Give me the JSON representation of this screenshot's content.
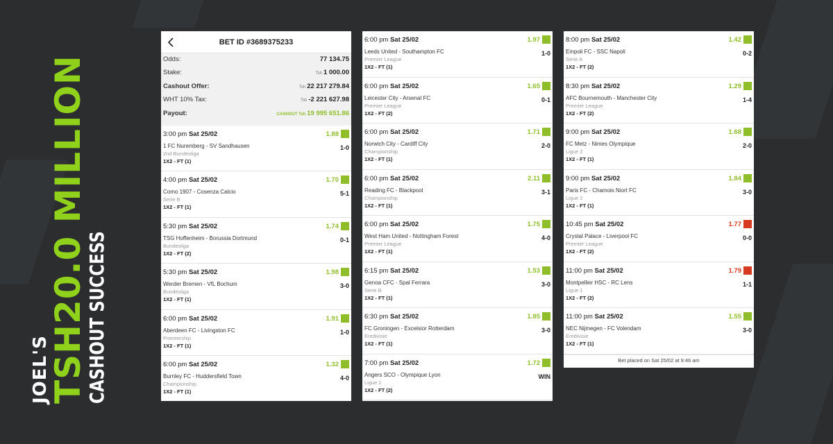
{
  "headline": {
    "line1": "JOEL'S",
    "line2": "TSH20.0 MILLION",
    "line3": "CASHOUT SUCCESS"
  },
  "colors": {
    "background": "#2b2d2f",
    "accent": "#8fd11b",
    "win": "#8fbe2a",
    "loss": "#d63b22"
  },
  "bet": {
    "title": "BET ID #3689375233",
    "back_icon": "chevron-left-icon",
    "summary": {
      "odds_label": "Odds:",
      "odds_value": "77 134.75",
      "stake_label": "Stake:",
      "stake_currency": "Tsh",
      "stake_value": "1 000.00",
      "cashout_label": "Cashout Offer:",
      "cashout_currency": "Tsh",
      "cashout_value": "22 217 279.84",
      "tax_label": "WHT 10% Tax:",
      "tax_currency": "Tsh",
      "tax_value": "-2 221 627.98",
      "payout_label": "Payout:",
      "payout_tag": "CASHOUT Tsh",
      "payout_value": "19 995 651.86"
    },
    "footer": "Bet placed on Sat 25/02 at 9:46 am"
  },
  "columns": [
    [
      {
        "time": "3:00 pm",
        "date": "Sat 25/02",
        "odds": "1.88",
        "status": "won",
        "teams": "1 FC Nuremberg - SV Sandhausen",
        "score": "1-0",
        "league": "2nd Bundesliga",
        "market": "1X2 - FT (1)"
      },
      {
        "time": "4:00 pm",
        "date": "Sat 25/02",
        "odds": "1.70",
        "status": "won",
        "teams": "Como 1907 - Cosenza Calcio",
        "score": "5-1",
        "league": "Serie B",
        "market": "1X2 - FT (1)"
      },
      {
        "time": "5:30 pm",
        "date": "Sat 25/02",
        "odds": "1.74",
        "status": "won",
        "teams": "TSG Hoffenheim - Borussia Dortmund",
        "score": "0-1",
        "league": "Bundesliga",
        "market": "1X2 - FT (2)"
      },
      {
        "time": "5:30 pm",
        "date": "Sat 25/02",
        "odds": "1.98",
        "status": "won",
        "teams": "Werder Bremen - VfL Bochum",
        "score": "3-0",
        "league": "Bundesliga",
        "market": "1X2 - FT (1)"
      },
      {
        "time": "6:00 pm",
        "date": "Sat 25/02",
        "odds": "1.91",
        "status": "won",
        "teams": "Aberdeen FC - Livingston FC",
        "score": "1-0",
        "league": "Premiership",
        "market": "1X2 - FT (1)"
      },
      {
        "time": "6:00 pm",
        "date": "Sat 25/02",
        "odds": "1.32",
        "status": "won",
        "teams": "Burnley FC - Huddersfield Town",
        "score": "4-0",
        "league": "Championship",
        "market": "1X2 - FT (1)"
      }
    ],
    [
      {
        "time": "6:00 pm",
        "date": "Sat 25/02",
        "odds": "1.97",
        "status": "won",
        "teams": "Leeds United - Southampton FC",
        "score": "1-0",
        "league": "Premier League",
        "market": "1X2 - FT (1)"
      },
      {
        "time": "6:00 pm",
        "date": "Sat 25/02",
        "odds": "1.65",
        "status": "won",
        "teams": "Leicester City - Arsenal FC",
        "score": "0-1",
        "league": "Premier League",
        "market": "1X2 - FT (2)"
      },
      {
        "time": "6:00 pm",
        "date": "Sat 25/02",
        "odds": "1.71",
        "status": "won",
        "teams": "Norwich City - Cardiff City",
        "score": "2-0",
        "league": "Championship",
        "market": "1X2 - FT (1)"
      },
      {
        "time": "6:00 pm",
        "date": "Sat 25/02",
        "odds": "2.11",
        "status": "won",
        "teams": "Reading FC - Blackpool",
        "score": "3-1",
        "league": "Championship",
        "market": "1X2 - FT (1)"
      },
      {
        "time": "6:00 pm",
        "date": "Sat 25/02",
        "odds": "1.75",
        "status": "won",
        "teams": "West Ham United - Nottingham Forest",
        "score": "4-0",
        "league": "Premier League",
        "market": "1X2 - FT (1)"
      },
      {
        "time": "6:15 pm",
        "date": "Sat 25/02",
        "odds": "1.53",
        "status": "won",
        "teams": "Genoa CFC - Spal Ferrara",
        "score": "3-0",
        "league": "Serie B",
        "market": "1X2 - FT (1)"
      },
      {
        "time": "6:30 pm",
        "date": "Sat 25/02",
        "odds": "1.85",
        "status": "won",
        "teams": "FC Groningen - Excelsior Rotterdam",
        "score": "3-0",
        "league": "Eredivisie",
        "market": "1X2 - FT (1)"
      },
      {
        "time": "7:00 pm",
        "date": "Sat 25/02",
        "odds": "1.72",
        "status": "won",
        "teams": "Angers SCO - Olympique Lyon",
        "score": "WIN",
        "league": "Ligue 1",
        "market": "1X2 - FT (2)"
      }
    ],
    [
      {
        "time": "8:00 pm",
        "date": "Sat 25/02",
        "odds": "1.42",
        "status": "won",
        "teams": "Empoli FC - SSC Napoli",
        "score": "0-2",
        "league": "Serie A",
        "market": "1X2 - FT (2)"
      },
      {
        "time": "8:30 pm",
        "date": "Sat 25/02",
        "odds": "1.29",
        "status": "won",
        "teams": "AFC Bournemouth - Manchester City",
        "score": "1-4",
        "league": "Premier League",
        "market": "1X2 - FT (2)"
      },
      {
        "time": "9:00 pm",
        "date": "Sat 25/02",
        "odds": "1.68",
        "status": "won",
        "teams": "FC Metz - Nimes Olympique",
        "score": "2-0",
        "league": "Ligue 2",
        "market": "1X2 - FT (1)"
      },
      {
        "time": "9:00 pm",
        "date": "Sat 25/02",
        "odds": "1.84",
        "status": "won",
        "teams": "Paris FC - Chamois Niort FC",
        "score": "3-0",
        "league": "Ligue 2",
        "market": "1X2 - FT (1)"
      },
      {
        "time": "10:45 pm",
        "date": "Sat 25/02",
        "odds": "1.77",
        "status": "lost",
        "teams": "Crystal Palace - Liverpool FC",
        "score": "0-0",
        "league": "Premier League",
        "market": "1X2 - FT (2)"
      },
      {
        "time": "11:00 pm",
        "date": "Sat 25/02",
        "odds": "1.79",
        "status": "lost",
        "teams": "Montpellier HSC - RC Lens",
        "score": "1-1",
        "league": "Ligue 1",
        "market": "1X2 - FT (2)"
      },
      {
        "time": "11:00 pm",
        "date": "Sat 25/02",
        "odds": "1.55",
        "status": "won",
        "teams": "NEC Nijmegen - FC Volendam",
        "score": "3-0",
        "league": "Eredivisie",
        "market": "1X2 - FT (1)"
      }
    ]
  ]
}
